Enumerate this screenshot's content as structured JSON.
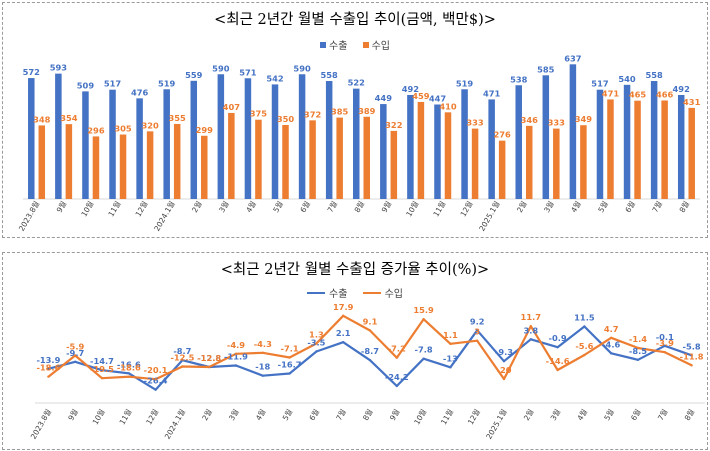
{
  "colors": {
    "export": "#4472C4",
    "import": "#ED7D31",
    "axis": "#d9d9d9"
  },
  "chart_data": [
    {
      "type": "bar",
      "title": "<최근 2년간 월별 수출입 추이(금액, 백만$)>",
      "legend_position": "top",
      "categories": [
        "2023.8월",
        "9월",
        "10월",
        "11월",
        "12월",
        "2024.1월",
        "2월",
        "3월",
        "4월",
        "5월",
        "6월",
        "7월",
        "8월",
        "9월",
        "10월",
        "11월",
        "12월",
        "2025.1월",
        "2월",
        "3월",
        "4월",
        "5월",
        "6월",
        "7월",
        "8월"
      ],
      "series": [
        {
          "name": "수출",
          "values": [
            572,
            593,
            509,
            517,
            476,
            519,
            559,
            590,
            571,
            542,
            590,
            558,
            522,
            449,
            492,
            447,
            519,
            471,
            538,
            585,
            637,
            517,
            540,
            558,
            492
          ]
        },
        {
          "name": "수입",
          "values": [
            348,
            354,
            296,
            305,
            320,
            355,
            299,
            407,
            375,
            350,
            372,
            385,
            389,
            322,
            459,
            410,
            333,
            276,
            346,
            333,
            349,
            471,
            465,
            466,
            431
          ]
        }
      ],
      "ylim": [
        0,
        700
      ]
    },
    {
      "type": "line",
      "title": "<최근 2년간 월별 수출입 증가율 추이(%)>",
      "legend_position": "top",
      "categories": [
        "2023.8월",
        "9월",
        "10월",
        "11월",
        "12월",
        "2024.1월",
        "2월",
        "3월",
        "4월",
        "5월",
        "6월",
        "7월",
        "8월",
        "9월",
        "10월",
        "11월",
        "12월",
        "2025.1월",
        "2월",
        "3월",
        "4월",
        "5월",
        "6월",
        "7월",
        "8월"
      ],
      "series": [
        {
          "name": "수출",
          "values": [
            -13.9,
            -9.7,
            -14.7,
            -16.6,
            -26.4,
            -8.7,
            -12.8,
            -11.9,
            -18.0,
            -16.7,
            -3.5,
            2.1,
            -8.7,
            -24.2,
            -7.8,
            -13.0,
            9.2,
            -9.3,
            3.8,
            -0.9,
            11.5,
            -4.6,
            -8.5,
            -0.1,
            -5.8
          ]
        },
        {
          "name": "수입",
          "values": [
            -18.6,
            -5.9,
            -19.5,
            -18.6,
            -20.1,
            -12.5,
            -12.8,
            -4.9,
            -4.3,
            -7.1,
            1.3,
            17.9,
            9.1,
            -7.2,
            15.9,
            1.1,
            3.0,
            -20.0,
            11.7,
            -14.6,
            -5.6,
            4.7,
            -1.4,
            -3.9,
            -11.8
          ]
        }
      ],
      "ylim": [
        -32,
        22
      ]
    }
  ]
}
